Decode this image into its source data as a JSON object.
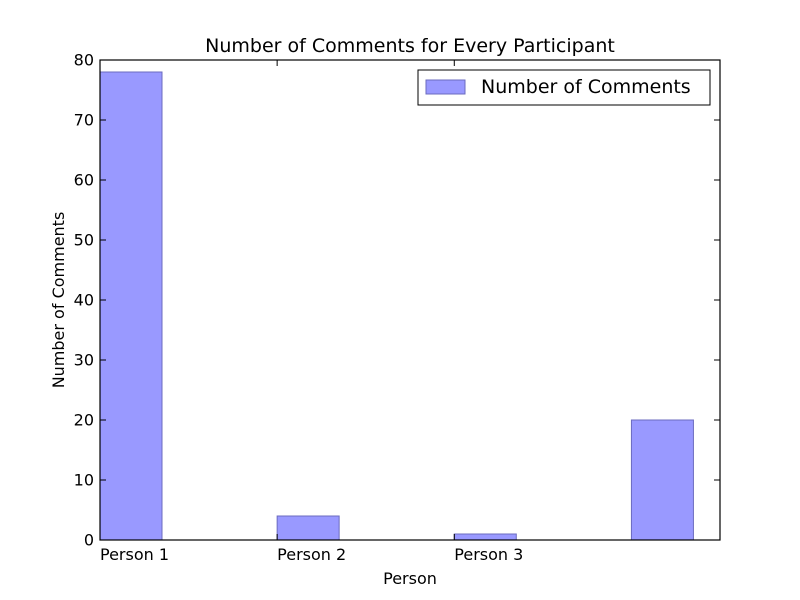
{
  "chart_data": {
    "type": "bar",
    "title": "Number of Comments for Every Participant",
    "xlabel": "Person",
    "ylabel": "Number of Comments",
    "categories": [
      "Person 1",
      "Person 2",
      "Person 3",
      ""
    ],
    "series": [
      {
        "name": "Number of Comments",
        "values": [
          78,
          4,
          1,
          20
        ],
        "color": "#9999ff"
      }
    ],
    "ylim": [
      0,
      80
    ],
    "yticks": [
      0,
      10,
      20,
      30,
      40,
      50,
      60,
      70,
      80
    ],
    "xtick_labels": [
      "Person 1",
      "Person 2",
      "Person 3"
    ],
    "grid": false,
    "legend": "top-right"
  }
}
